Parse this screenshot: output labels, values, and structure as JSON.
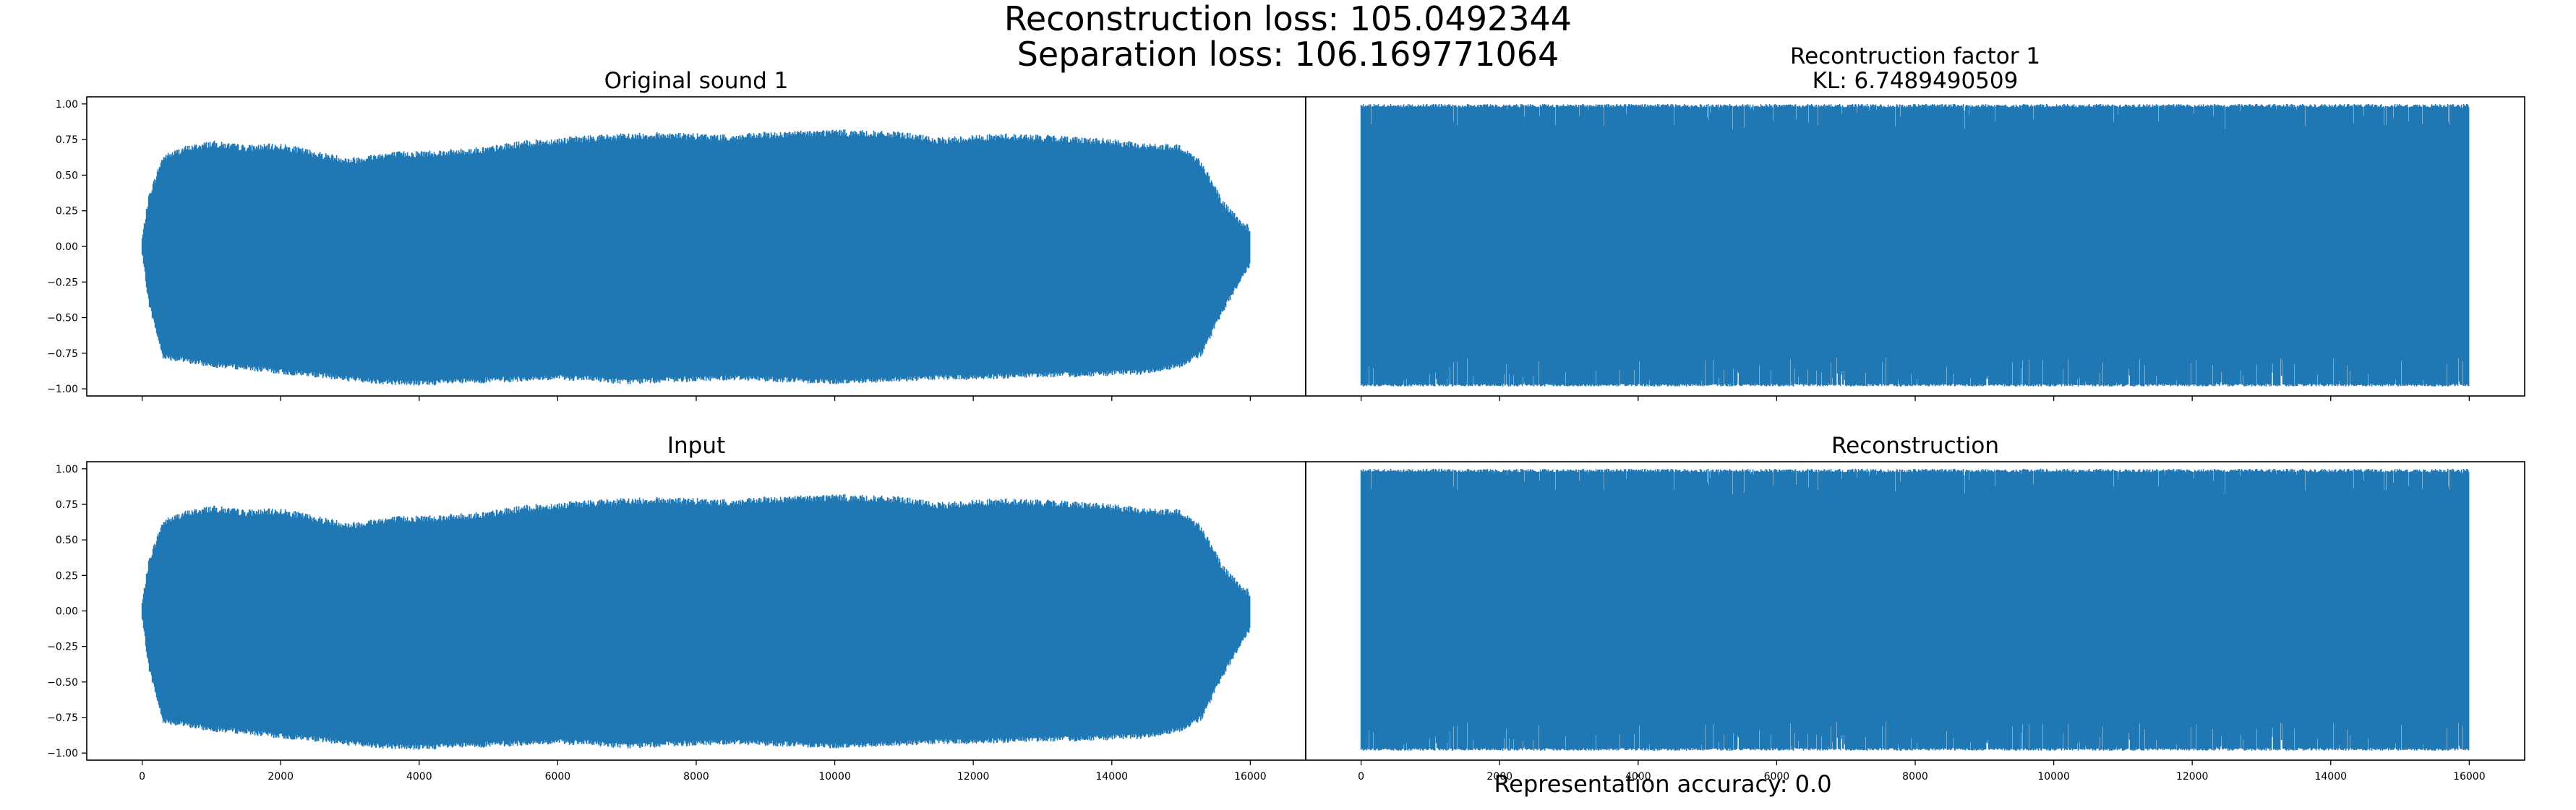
{
  "figure": {
    "suptitle_line1": "Reconstruction loss: 105.0492344",
    "suptitle_line2": "Separation loss: 106.169771064",
    "footer": "Representation accuracy: 0.0",
    "line_color": "#1f77b4"
  },
  "chart_data": [
    {
      "id": "original",
      "type": "line",
      "title": "Original sound 1",
      "subtitle": "",
      "xlim": [
        -800,
        16800
      ],
      "ylim": [
        -1.05,
        1.05
      ],
      "yticks": [
        -1.0,
        -0.75,
        -0.5,
        -0.25,
        0.0,
        0.25,
        0.5,
        0.75,
        1.0
      ],
      "ytick_labels": [
        "−1.00",
        "−0.75",
        "−0.50",
        "−0.25",
        "0.00",
        "0.25",
        "0.50",
        "0.75",
        "1.00"
      ],
      "xticks": [
        0,
        2000,
        4000,
        6000,
        8000,
        10000,
        12000,
        14000,
        16000
      ],
      "xtick_labels": [],
      "envelope": {
        "x": [
          0,
          100,
          300,
          600,
          1000,
          1500,
          2000,
          2500,
          3000,
          3500,
          4000,
          4500,
          5000,
          5500,
          6000,
          6500,
          7000,
          7500,
          8000,
          8500,
          9000,
          9500,
          10000,
          10500,
          11000,
          11500,
          12000,
          12500,
          13000,
          13500,
          14000,
          14500,
          15000,
          15300,
          15600,
          15900,
          16000
        ],
        "upper": [
          0.05,
          0.35,
          0.62,
          0.68,
          0.72,
          0.69,
          0.7,
          0.65,
          0.6,
          0.64,
          0.65,
          0.66,
          0.68,
          0.72,
          0.74,
          0.76,
          0.77,
          0.78,
          0.77,
          0.76,
          0.78,
          0.79,
          0.8,
          0.79,
          0.78,
          0.74,
          0.76,
          0.77,
          0.76,
          0.75,
          0.73,
          0.7,
          0.69,
          0.58,
          0.3,
          0.15,
          0.12
        ],
        "lower": [
          -0.05,
          -0.4,
          -0.77,
          -0.8,
          -0.83,
          -0.85,
          -0.88,
          -0.9,
          -0.93,
          -0.95,
          -0.96,
          -0.95,
          -0.94,
          -0.93,
          -0.92,
          -0.93,
          -0.95,
          -0.94,
          -0.93,
          -0.92,
          -0.93,
          -0.94,
          -0.95,
          -0.94,
          -0.93,
          -0.92,
          -0.92,
          -0.91,
          -0.9,
          -0.9,
          -0.89,
          -0.88,
          -0.83,
          -0.75,
          -0.45,
          -0.2,
          -0.12
        ]
      }
    },
    {
      "id": "recon_factor",
      "type": "line",
      "title": "Recontruction factor 1",
      "subtitle": "KL: 6.7489490509",
      "xlim": [
        -800,
        16800
      ],
      "ylim": [
        -1.05,
        1.05
      ],
      "yticks": [],
      "ytick_labels": [],
      "xticks": [
        0,
        2000,
        4000,
        6000,
        8000,
        10000,
        12000,
        14000,
        16000
      ],
      "xtick_labels": [],
      "envelope": {
        "x": [
          0,
          16000
        ],
        "upper": [
          1.0,
          1.0
        ],
        "lower": [
          -1.0,
          -1.0
        ]
      }
    },
    {
      "id": "input",
      "type": "line",
      "title": "Input",
      "subtitle": "",
      "xlim": [
        -800,
        16800
      ],
      "ylim": [
        -1.05,
        1.05
      ],
      "yticks": [
        -1.0,
        -0.75,
        -0.5,
        -0.25,
        0.0,
        0.25,
        0.5,
        0.75,
        1.0
      ],
      "ytick_labels": [
        "−1.00",
        "−0.75",
        "−0.50",
        "−0.25",
        "0.00",
        "0.25",
        "0.50",
        "0.75",
        "1.00"
      ],
      "xticks": [
        0,
        2000,
        4000,
        6000,
        8000,
        10000,
        12000,
        14000,
        16000
      ],
      "xtick_labels": [
        "0",
        "2000",
        "4000",
        "6000",
        "8000",
        "10000",
        "12000",
        "14000",
        "16000"
      ],
      "envelope": {
        "x": [
          0,
          100,
          300,
          600,
          1000,
          1500,
          2000,
          2500,
          3000,
          3500,
          4000,
          4500,
          5000,
          5500,
          6000,
          6500,
          7000,
          7500,
          8000,
          8500,
          9000,
          9500,
          10000,
          10500,
          11000,
          11500,
          12000,
          12500,
          13000,
          13500,
          14000,
          14500,
          15000,
          15300,
          15600,
          15900,
          16000
        ],
        "upper": [
          0.05,
          0.35,
          0.62,
          0.68,
          0.72,
          0.69,
          0.7,
          0.65,
          0.6,
          0.64,
          0.65,
          0.66,
          0.68,
          0.72,
          0.74,
          0.76,
          0.77,
          0.78,
          0.77,
          0.76,
          0.78,
          0.79,
          0.8,
          0.79,
          0.78,
          0.74,
          0.76,
          0.77,
          0.76,
          0.75,
          0.73,
          0.7,
          0.69,
          0.58,
          0.3,
          0.15,
          0.12
        ],
        "lower": [
          -0.05,
          -0.4,
          -0.77,
          -0.8,
          -0.83,
          -0.85,
          -0.88,
          -0.9,
          -0.93,
          -0.95,
          -0.96,
          -0.95,
          -0.94,
          -0.93,
          -0.92,
          -0.93,
          -0.95,
          -0.94,
          -0.93,
          -0.92,
          -0.93,
          -0.94,
          -0.95,
          -0.94,
          -0.93,
          -0.92,
          -0.92,
          -0.91,
          -0.9,
          -0.9,
          -0.89,
          -0.88,
          -0.83,
          -0.75,
          -0.45,
          -0.2,
          -0.12
        ]
      }
    },
    {
      "id": "reconstruction",
      "type": "line",
      "title": "Reconstruction",
      "subtitle": "",
      "xlim": [
        -800,
        16800
      ],
      "ylim": [
        -1.05,
        1.05
      ],
      "yticks": [],
      "ytick_labels": [],
      "xticks": [
        0,
        2000,
        4000,
        6000,
        8000,
        10000,
        12000,
        14000,
        16000
      ],
      "xtick_labels": [
        "0",
        "2000",
        "4000",
        "6000",
        "8000",
        "10000",
        "12000",
        "14000",
        "16000"
      ],
      "envelope": {
        "x": [
          0,
          16000
        ],
        "upper": [
          1.0,
          1.0
        ],
        "lower": [
          -1.0,
          -1.0
        ]
      }
    }
  ]
}
